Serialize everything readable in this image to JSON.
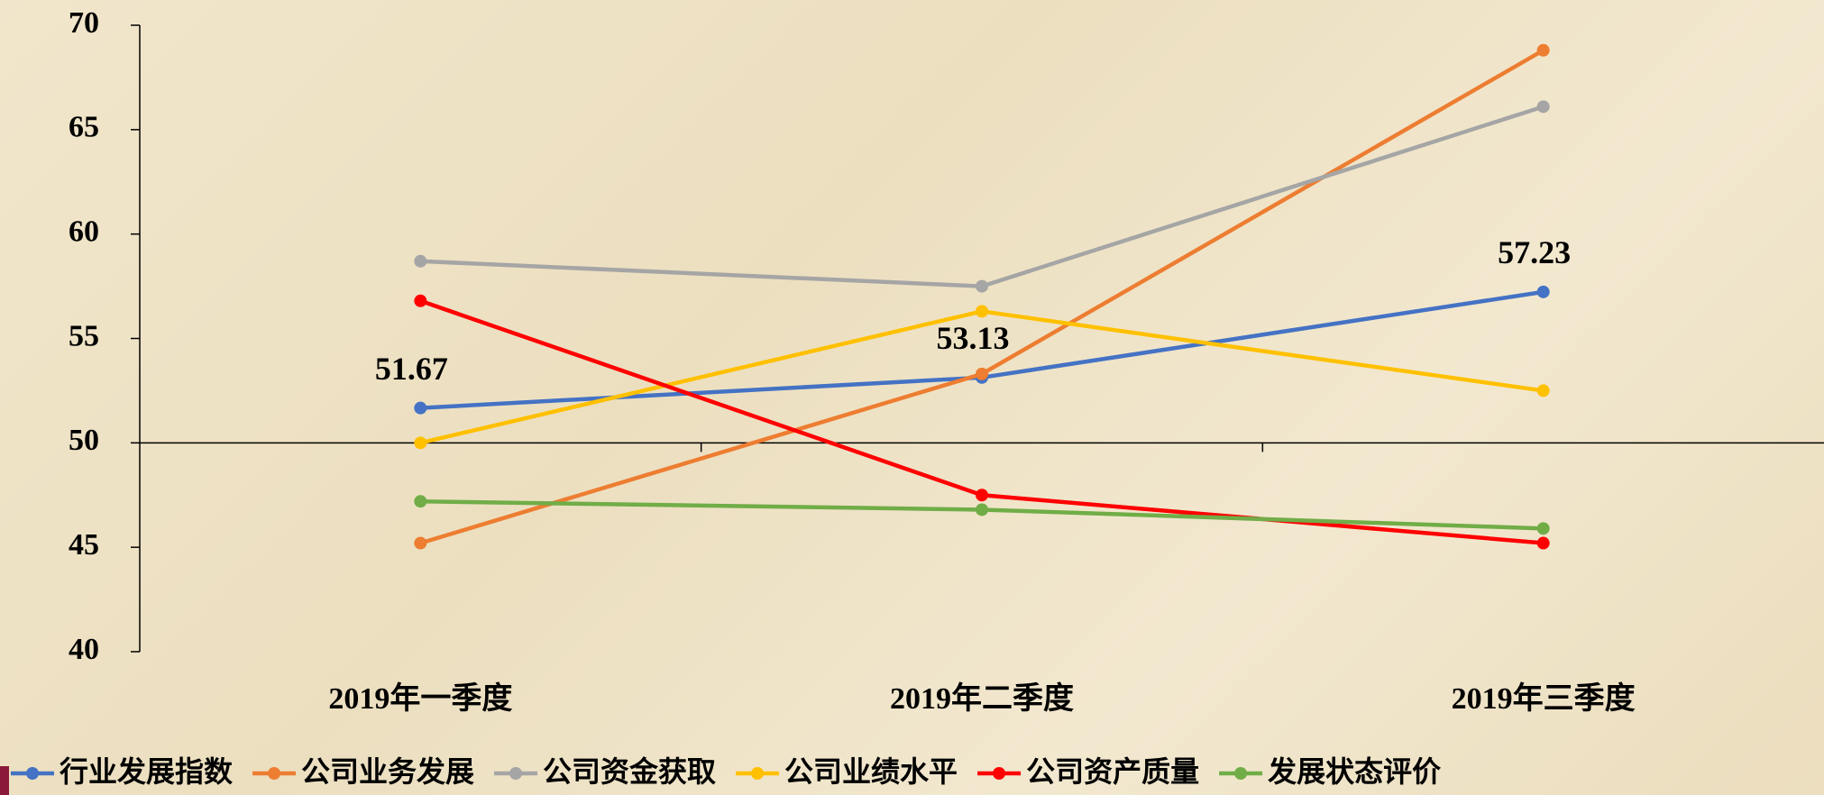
{
  "chart_data": {
    "type": "line",
    "categories": [
      "2019年一季度",
      "2019年二季度",
      "2019年三季度"
    ],
    "series": [
      {
        "name": "行业发展指数",
        "color": "#4472c4",
        "values": [
          51.67,
          53.13,
          57.23
        ],
        "data_labels": true
      },
      {
        "name": "公司业务发展",
        "color": "#ed7d31",
        "values": [
          45.2,
          53.3,
          68.8
        ]
      },
      {
        "name": "公司资金获取",
        "color": "#a5a5a5",
        "values": [
          58.7,
          57.5,
          66.1
        ]
      },
      {
        "name": "公司业绩水平",
        "color": "#ffc000",
        "values": [
          50.0,
          56.3,
          52.5
        ]
      },
      {
        "name": "公司资产质量",
        "color": "#ff0000",
        "values": [
          56.8,
          47.5,
          45.2
        ]
      },
      {
        "name": "发展状态评价",
        "color": "#70ad47",
        "values": [
          47.2,
          46.8,
          45.9
        ]
      }
    ],
    "ylim": [
      40,
      70
    ],
    "yticks": [
      40,
      45,
      50,
      55,
      60,
      65,
      70
    ],
    "x_axis_crossing": 50,
    "legend": "bottom"
  }
}
